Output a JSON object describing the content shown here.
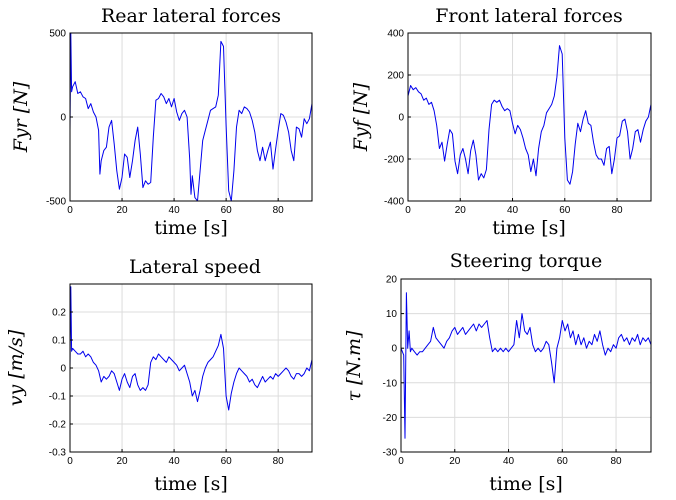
{
  "chart_data": [
    {
      "type": "line",
      "title": "Rear lateral forces",
      "xlabel": "time [s]",
      "ylabel": "F_yr [N]",
      "ylabel_display": "Fyr [N]",
      "xlim": [
        0,
        93
      ],
      "ylim": [
        -500,
        500
      ],
      "xticks": [
        0,
        20,
        40,
        60,
        80
      ],
      "yticks": [
        -500,
        0,
        500
      ],
      "grid": true,
      "series": [
        {
          "color": "#0000ee",
          "x": [
            0,
            0.3,
            0.6,
            1,
            2,
            3,
            4,
            5,
            6,
            7,
            8,
            9,
            10,
            11,
            11.5,
            12,
            13,
            14,
            15,
            16,
            17,
            18,
            19,
            20,
            21,
            22,
            23,
            24,
            25,
            26,
            27,
            28,
            29,
            30,
            31,
            32,
            33,
            34,
            35,
            36,
            37,
            38,
            39,
            40,
            41,
            42,
            43,
            44,
            45,
            46,
            46.5,
            47,
            48,
            49,
            50,
            51,
            52,
            53,
            54,
            55,
            56,
            57,
            58,
            59,
            60,
            61,
            62,
            63,
            64,
            65,
            66,
            67,
            68,
            69,
            70,
            71,
            72,
            73,
            74,
            75,
            76,
            77,
            78,
            79,
            80,
            81,
            82,
            83,
            84,
            85,
            86,
            87,
            88,
            89,
            90,
            91,
            92,
            93
          ],
          "values": [
            -80,
            520,
            150,
            180,
            210,
            140,
            150,
            120,
            110,
            50,
            80,
            30,
            0,
            -80,
            -340,
            -260,
            -200,
            -180,
            -60,
            -20,
            -160,
            -320,
            -430,
            -360,
            -220,
            -240,
            -360,
            -260,
            -140,
            -60,
            -220,
            -420,
            -380,
            -400,
            -390,
            -120,
            100,
            110,
            140,
            120,
            80,
            110,
            60,
            110,
            30,
            -20,
            20,
            40,
            0,
            -250,
            -460,
            -350,
            -480,
            -540,
            -320,
            -140,
            -80,
            -20,
            40,
            50,
            60,
            130,
            450,
            420,
            -50,
            -440,
            -540,
            -320,
            -60,
            40,
            20,
            60,
            50,
            30,
            -20,
            -90,
            -200,
            -260,
            -180,
            -260,
            -200,
            -150,
            -310,
            -190,
            -80,
            20,
            10,
            -30,
            -90,
            -200,
            -260,
            -60,
            -70,
            -120,
            -10,
            -40,
            -10,
            80
          ]
        }
      ]
    },
    {
      "type": "line",
      "title": "Front lateral forces",
      "xlabel": "time [s]",
      "ylabel": "F_yf [N]",
      "ylabel_display": "Fyf [N]",
      "xlim": [
        0,
        93
      ],
      "ylim": [
        -400,
        400
      ],
      "xticks": [
        0,
        20,
        40,
        60,
        80
      ],
      "yticks": [
        -400,
        -200,
        0,
        200,
        400
      ],
      "grid": true,
      "series": [
        {
          "color": "#0000ee",
          "x": [
            0,
            1,
            2,
            3,
            4,
            5,
            6,
            7,
            8,
            9,
            10,
            11,
            12,
            13,
            14,
            15,
            16,
            17,
            18,
            19,
            20,
            21,
            22,
            23,
            24,
            25,
            26,
            27,
            28,
            29,
            30,
            31,
            32,
            33,
            34,
            35,
            36,
            37,
            38,
            39,
            40,
            41,
            42,
            43,
            44,
            45,
            46,
            47,
            48,
            49,
            50,
            51,
            52,
            53,
            54,
            55,
            56,
            57,
            58,
            59,
            60,
            61,
            62,
            63,
            64,
            65,
            66,
            67,
            68,
            69,
            70,
            71,
            72,
            73,
            74,
            75,
            76,
            77,
            78,
            79,
            80,
            81,
            82,
            83,
            84,
            85,
            86,
            87,
            88,
            89,
            90,
            91,
            92,
            93
          ],
          "values": [
            100,
            150,
            130,
            140,
            120,
            110,
            80,
            90,
            60,
            70,
            30,
            -40,
            -150,
            -120,
            -210,
            -130,
            -60,
            -80,
            -210,
            -270,
            -180,
            -150,
            -200,
            -270,
            -160,
            -110,
            -180,
            -300,
            -270,
            -290,
            -250,
            -60,
            60,
            80,
            70,
            80,
            50,
            30,
            40,
            30,
            -30,
            -80,
            -40,
            -60,
            -100,
            -150,
            -180,
            -260,
            -200,
            -280,
            -150,
            -70,
            -40,
            20,
            40,
            60,
            100,
            190,
            340,
            300,
            -100,
            -300,
            -320,
            -260,
            -130,
            -30,
            -70,
            -10,
            30,
            -30,
            -40,
            -120,
            -180,
            -200,
            -200,
            -230,
            -150,
            -140,
            -270,
            -200,
            -100,
            -90,
            -20,
            -10,
            -70,
            -200,
            -150,
            -70,
            -60,
            -120,
            -60,
            -20,
            0,
            60
          ]
        }
      ]
    },
    {
      "type": "line",
      "title": "Lateral speed",
      "xlabel": "time [s]",
      "ylabel": "v_y [m/s]",
      "ylabel_display": "vy [m/s]",
      "xlim": [
        0,
        93
      ],
      "ylim": [
        -0.3,
        0.3
      ],
      "xticks": [
        0,
        20,
        40,
        60,
        80
      ],
      "yticks": [
        -0.3,
        -0.2,
        -0.1,
        0,
        0.1,
        0.2
      ],
      "grid": true,
      "series": [
        {
          "color": "#0000ee",
          "x": [
            0,
            0.3,
            0.6,
            1,
            2,
            3,
            4,
            5,
            6,
            7,
            8,
            9,
            10,
            11,
            12,
            13,
            14,
            15,
            16,
            17,
            18,
            19,
            20,
            21,
            22,
            23,
            24,
            25,
            26,
            27,
            28,
            29,
            30,
            31,
            32,
            33,
            34,
            35,
            36,
            37,
            38,
            39,
            40,
            41,
            42,
            43,
            44,
            45,
            46,
            47,
            48,
            49,
            50,
            51,
            52,
            53,
            54,
            55,
            56,
            57,
            58,
            59,
            60,
            61,
            62,
            63,
            64,
            65,
            66,
            67,
            68,
            69,
            70,
            71,
            72,
            73,
            74,
            75,
            76,
            77,
            78,
            79,
            80,
            81,
            82,
            83,
            84,
            85,
            86,
            87,
            88,
            89,
            90,
            91,
            92,
            93
          ],
          "values": [
            0,
            0.29,
            0.06,
            0.07,
            0.06,
            0.05,
            0.05,
            0.06,
            0.04,
            0.05,
            0.04,
            0.02,
            0.01,
            -0.01,
            -0.05,
            -0.03,
            -0.04,
            -0.03,
            -0.01,
            -0.02,
            -0.05,
            -0.08,
            -0.04,
            -0.02,
            -0.05,
            -0.07,
            -0.03,
            -0.02,
            -0.06,
            -0.08,
            -0.07,
            -0.08,
            -0.06,
            0.02,
            0.04,
            0.03,
            0.05,
            0.04,
            0.03,
            0.02,
            0.04,
            0.03,
            0.02,
            0.01,
            -0.01,
            0.0,
            0.01,
            -0.02,
            -0.05,
            -0.1,
            -0.08,
            -0.12,
            -0.08,
            -0.03,
            0.0,
            0.02,
            0.03,
            0.04,
            0.06,
            0.08,
            0.12,
            0.07,
            -0.1,
            -0.15,
            -0.09,
            -0.05,
            -0.02,
            0.0,
            -0.01,
            -0.02,
            -0.03,
            -0.05,
            -0.04,
            -0.06,
            -0.07,
            -0.05,
            -0.03,
            -0.05,
            -0.04,
            -0.03,
            -0.04,
            -0.02,
            -0.03,
            -0.02,
            -0.01,
            0.0,
            -0.01,
            -0.03,
            -0.04,
            -0.02,
            -0.02,
            -0.03,
            -0.02,
            0.0,
            -0.01,
            0.03
          ]
        }
      ]
    },
    {
      "type": "line",
      "title": "Steering torque",
      "xlabel": "time [s]",
      "ylabel": "τ [N.m]",
      "ylabel_display": "τ [N.m]",
      "xlim": [
        0,
        93
      ],
      "ylim": [
        -30,
        20
      ],
      "xticks": [
        0,
        20,
        40,
        60,
        80
      ],
      "yticks": [
        -30,
        -20,
        -10,
        0,
        10,
        20
      ],
      "grid": true,
      "series": [
        {
          "color": "#0000ee",
          "x": [
            0,
            1,
            1.5,
            2,
            2.5,
            3,
            3.5,
            4,
            5,
            6,
            7,
            8,
            9,
            10,
            11,
            12,
            13,
            14,
            15,
            16,
            17,
            18,
            19,
            20,
            21,
            22,
            23,
            24,
            25,
            26,
            27,
            28,
            29,
            30,
            31,
            32,
            33,
            34,
            35,
            36,
            37,
            38,
            39,
            40,
            41,
            42,
            43,
            44,
            45,
            46,
            47,
            48,
            49,
            50,
            51,
            52,
            53,
            54,
            55,
            56,
            57,
            58,
            59,
            60,
            61,
            62,
            63,
            64,
            65,
            66,
            67,
            68,
            69,
            70,
            71,
            72,
            73,
            74,
            75,
            76,
            77,
            78,
            79,
            80,
            81,
            82,
            83,
            84,
            85,
            86,
            87,
            88,
            89,
            90,
            91,
            92,
            93
          ],
          "values": [
            0,
            -2,
            -26,
            16,
            0,
            5,
            -1,
            0,
            -1,
            -2,
            -1,
            -1,
            0,
            1,
            2,
            6,
            3,
            2,
            1,
            0,
            2,
            3,
            5,
            6,
            4,
            5,
            6,
            4,
            5,
            6,
            7,
            5,
            7,
            6,
            7,
            8,
            3,
            -1,
            0,
            -1,
            0,
            -1,
            0,
            -1,
            0,
            1,
            8,
            3,
            10,
            5,
            4,
            6,
            1,
            -1,
            0,
            -1,
            0,
            2,
            1,
            -4,
            -10,
            0,
            3,
            8,
            5,
            7,
            3,
            5,
            1,
            4,
            1,
            3,
            0,
            2,
            1,
            4,
            2,
            5,
            1,
            -2,
            0,
            -1,
            1,
            0,
            3,
            4,
            2,
            3,
            1,
            3,
            2,
            4,
            1,
            3,
            2,
            3,
            1
          ]
        }
      ]
    }
  ]
}
